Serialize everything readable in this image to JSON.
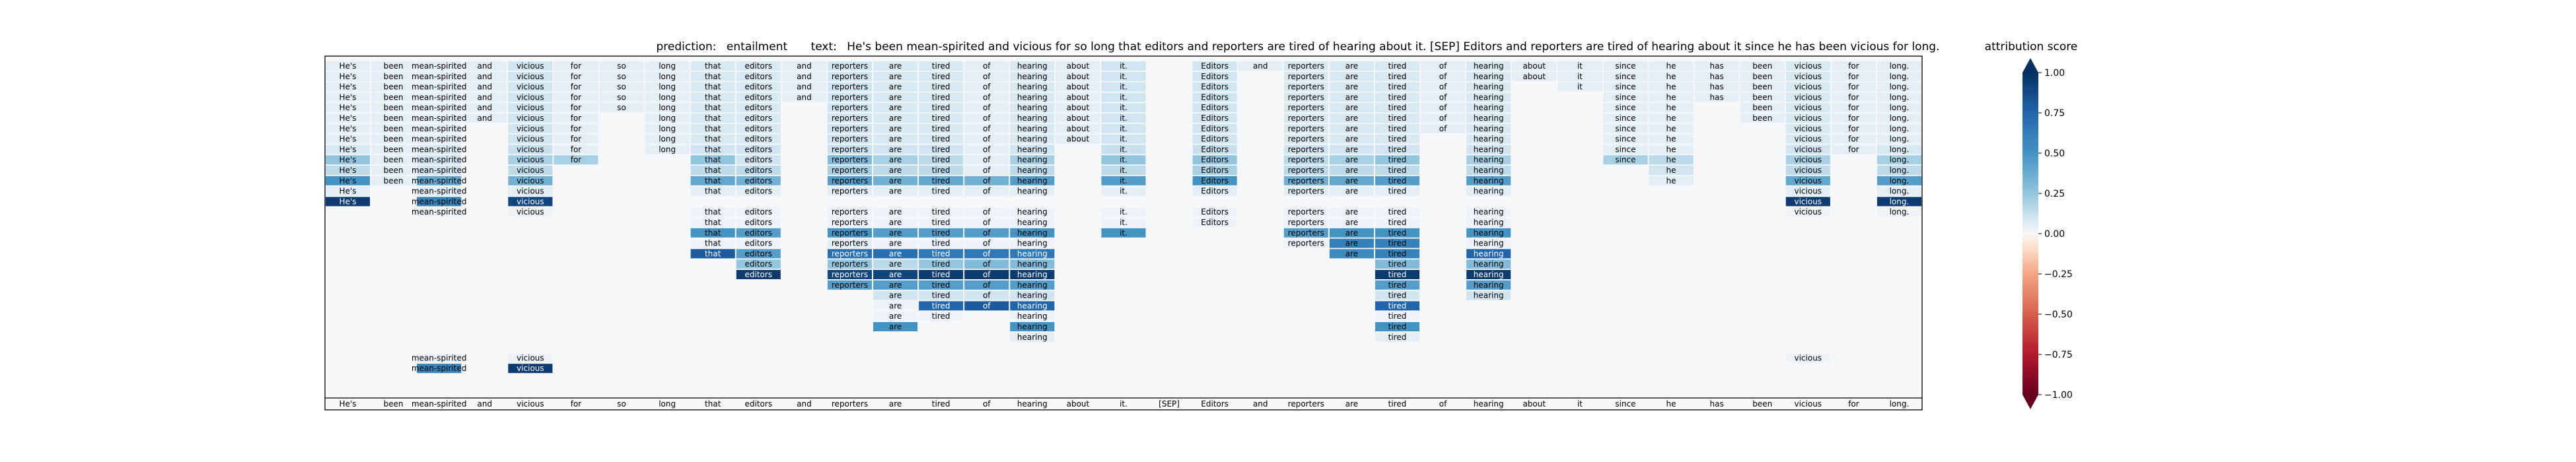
{
  "chart_data": {
    "type": "heatmap",
    "title": {
      "prediction_label": "prediction:",
      "prediction": "entailment",
      "text_label": "text:",
      "text": "He's been mean-spirited and vicious for so long that editors and reporters are tired of hearing about it. [SEP] Editors and reporters are tired of hearing about it since he has been vicious for long."
    },
    "tokens": [
      "He's",
      "been",
      "mean-spirited",
      "and",
      "vicious",
      "for",
      "so",
      "long",
      "that",
      "editors",
      "and",
      "reporters",
      "are",
      "tired",
      "of",
      "hearing",
      "about",
      "it.",
      "[SEP]",
      "Editors",
      "and",
      "reporters",
      "are",
      "tired",
      "of",
      "hearing",
      "about",
      "it",
      "since",
      "he",
      "has",
      "been",
      "vicious",
      "for",
      "long."
    ],
    "rows": [
      {
        "tokens": [
          0,
          1,
          2,
          3,
          4,
          5,
          6,
          7,
          8,
          9,
          10,
          11,
          12,
          13,
          14,
          15,
          16,
          17,
          19,
          20,
          21,
          22,
          23,
          24,
          25,
          26,
          27,
          28,
          29,
          30,
          31,
          32,
          33,
          34
        ],
        "scores": {
          "0": 0.05,
          "1": 0.05,
          "2": 0.05,
          "3": 0.05,
          "4": 0.1,
          "5": 0.05,
          "6": 0.05,
          "7": 0.05,
          "8": 0.08,
          "9": 0.08,
          "10": 0.05,
          "11": 0.1,
          "12": 0.08,
          "13": 0.08,
          "14": 0.05,
          "15": 0.08,
          "16": 0.05,
          "17": 0.1,
          "19": 0.1,
          "20": 0.05,
          "21": 0.08,
          "22": 0.08,
          "23": 0.08,
          "24": 0.05,
          "25": 0.08,
          "26": 0.05,
          "27": 0.05,
          "28": 0.05,
          "29": 0.05,
          "30": 0.05,
          "31": 0.05,
          "32": 0.08,
          "33": 0.05,
          "34": 0.05
        }
      },
      {
        "tokens": [
          0,
          1,
          2,
          3,
          4,
          5,
          6,
          7,
          8,
          9,
          10,
          11,
          12,
          13,
          14,
          15,
          16,
          17,
          19,
          21,
          22,
          23,
          24,
          25,
          26,
          27,
          28,
          29,
          30,
          31,
          32,
          33,
          34
        ],
        "scores": {
          "0": 0.05,
          "1": 0.05,
          "2": 0.05,
          "3": 0.05,
          "4": 0.1,
          "5": 0.05,
          "6": 0.05,
          "7": 0.05,
          "8": 0.08,
          "9": 0.08,
          "10": 0.05,
          "11": 0.1,
          "12": 0.08,
          "13": 0.08,
          "14": 0.05,
          "15": 0.08,
          "16": 0.05,
          "17": 0.1,
          "19": 0.1,
          "21": 0.08,
          "22": 0.08,
          "23": 0.08,
          "24": 0.05,
          "25": 0.08,
          "26": 0.05,
          "27": 0.05,
          "28": 0.05,
          "29": 0.05,
          "30": 0.05,
          "31": 0.05,
          "32": 0.08,
          "33": 0.05,
          "34": 0.05
        }
      },
      {
        "tokens": [
          0,
          1,
          2,
          3,
          4,
          5,
          6,
          7,
          8,
          9,
          10,
          11,
          12,
          13,
          14,
          15,
          16,
          17,
          19,
          21,
          22,
          23,
          24,
          25,
          27,
          28,
          29,
          30,
          31,
          32,
          33,
          34
        ],
        "scores": {
          "0": 0.05,
          "1": 0.05,
          "2": 0.05,
          "3": 0.05,
          "4": 0.1,
          "5": 0.05,
          "6": 0.05,
          "7": 0.05,
          "8": 0.08,
          "9": 0.08,
          "10": 0.05,
          "11": 0.1,
          "12": 0.08,
          "13": 0.08,
          "14": 0.05,
          "15": 0.08,
          "16": 0.05,
          "17": 0.1,
          "19": 0.1,
          "21": 0.08,
          "22": 0.08,
          "23": 0.08,
          "24": 0.05,
          "25": 0.08,
          "27": 0.05,
          "28": 0.05,
          "29": 0.05,
          "30": 0.05,
          "31": 0.05,
          "32": 0.08,
          "33": 0.05,
          "34": 0.05
        }
      },
      {
        "tokens": [
          0,
          1,
          2,
          3,
          4,
          5,
          6,
          7,
          8,
          9,
          10,
          11,
          12,
          13,
          14,
          15,
          16,
          17,
          19,
          21,
          22,
          23,
          24,
          25,
          28,
          29,
          30,
          31,
          32,
          33,
          34
        ],
        "scores": {
          "0": 0.05,
          "1": 0.05,
          "2": 0.05,
          "3": 0.05,
          "4": 0.1,
          "5": 0.05,
          "6": 0.05,
          "7": 0.05,
          "8": 0.08,
          "9": 0.08,
          "10": 0.05,
          "11": 0.1,
          "12": 0.08,
          "13": 0.08,
          "14": 0.05,
          "15": 0.08,
          "16": 0.05,
          "17": 0.1,
          "19": 0.1,
          "21": 0.08,
          "22": 0.08,
          "23": 0.08,
          "24": 0.05,
          "25": 0.08,
          "28": 0.05,
          "29": 0.05,
          "30": 0.05,
          "31": 0.05,
          "32": 0.08,
          "33": 0.05,
          "34": 0.05
        }
      },
      {
        "tokens": [
          0,
          1,
          2,
          3,
          4,
          5,
          6,
          7,
          8,
          9,
          11,
          12,
          13,
          14,
          15,
          16,
          17,
          19,
          21,
          22,
          23,
          24,
          25,
          28,
          29,
          31,
          32,
          33,
          34
        ],
        "scores": {
          "0": 0.05,
          "1": 0.05,
          "2": 0.05,
          "3": 0.05,
          "4": 0.1,
          "5": 0.05,
          "6": 0.05,
          "7": 0.05,
          "8": 0.08,
          "9": 0.08,
          "11": 0.1,
          "12": 0.08,
          "13": 0.08,
          "14": 0.05,
          "15": 0.08,
          "16": 0.05,
          "17": 0.1,
          "19": 0.1,
          "21": 0.08,
          "22": 0.08,
          "23": 0.08,
          "24": 0.05,
          "25": 0.08,
          "28": 0.05,
          "29": 0.05,
          "31": 0.05,
          "32": 0.08,
          "33": 0.05,
          "34": 0.05
        }
      },
      {
        "tokens": [
          0,
          1,
          2,
          3,
          4,
          5,
          7,
          8,
          9,
          11,
          12,
          13,
          14,
          15,
          16,
          17,
          19,
          21,
          22,
          23,
          24,
          25,
          28,
          29,
          31,
          32,
          33,
          34
        ],
        "scores": {
          "0": 0.05,
          "1": 0.05,
          "2": 0.05,
          "3": 0.05,
          "4": 0.1,
          "5": 0.05,
          "7": 0.05,
          "8": 0.08,
          "9": 0.08,
          "11": 0.1,
          "12": 0.08,
          "13": 0.08,
          "14": 0.05,
          "15": 0.08,
          "16": 0.05,
          "17": 0.1,
          "19": 0.1,
          "21": 0.08,
          "22": 0.08,
          "23": 0.08,
          "24": 0.05,
          "25": 0.08,
          "28": 0.05,
          "29": 0.05,
          "31": 0.05,
          "32": 0.08,
          "33": 0.05,
          "34": 0.05
        }
      },
      {
        "tokens": [
          0,
          1,
          2,
          4,
          5,
          7,
          8,
          9,
          11,
          12,
          13,
          14,
          15,
          16,
          17,
          19,
          21,
          22,
          23,
          24,
          25,
          28,
          29,
          32,
          33,
          34
        ],
        "scores": {
          "0": 0.05,
          "1": 0.05,
          "2": 0.05,
          "4": 0.1,
          "5": 0.05,
          "7": 0.05,
          "8": 0.08,
          "9": 0.08,
          "11": 0.1,
          "12": 0.08,
          "13": 0.08,
          "14": 0.05,
          "15": 0.08,
          "16": 0.05,
          "17": 0.1,
          "19": 0.1,
          "21": 0.08,
          "22": 0.08,
          "23": 0.08,
          "24": 0.05,
          "25": 0.08,
          "28": 0.05,
          "29": 0.05,
          "32": 0.08,
          "33": 0.05,
          "34": 0.05
        }
      },
      {
        "tokens": [
          0,
          1,
          2,
          4,
          5,
          7,
          8,
          9,
          11,
          12,
          13,
          14,
          15,
          16,
          17,
          19,
          21,
          22,
          23,
          25,
          28,
          29,
          32,
          33,
          34
        ],
        "scores": {
          "0": 0.05,
          "1": 0.05,
          "2": 0.05,
          "4": 0.1,
          "5": 0.05,
          "7": 0.05,
          "8": 0.08,
          "9": 0.08,
          "11": 0.1,
          "12": 0.08,
          "13": 0.08,
          "14": 0.05,
          "15": 0.08,
          "16": 0.05,
          "17": 0.1,
          "19": 0.1,
          "21": 0.08,
          "22": 0.08,
          "23": 0.08,
          "25": 0.08,
          "28": 0.05,
          "29": 0.05,
          "32": 0.08,
          "33": 0.05,
          "34": 0.05
        }
      },
      {
        "tokens": [
          0,
          1,
          2,
          4,
          5,
          7,
          8,
          9,
          11,
          12,
          13,
          14,
          15,
          17,
          19,
          21,
          22,
          23,
          25,
          28,
          29,
          32,
          33,
          34
        ],
        "scores": {
          "0": 0.08,
          "1": 0.05,
          "2": 0.08,
          "4": 0.12,
          "5": 0.05,
          "7": 0.05,
          "8": 0.1,
          "9": 0.1,
          "11": 0.12,
          "12": 0.1,
          "13": 0.1,
          "14": 0.05,
          "15": 0.1,
          "17": 0.12,
          "19": 0.12,
          "21": 0.1,
          "22": 0.1,
          "23": 0.1,
          "25": 0.1,
          "28": 0.05,
          "29": 0.05,
          "32": 0.1,
          "33": 0.05,
          "34": 0.08
        }
      },
      {
        "tokens": [
          0,
          1,
          2,
          4,
          5,
          8,
          9,
          11,
          12,
          13,
          14,
          15,
          17,
          19,
          21,
          22,
          23,
          25,
          28,
          29,
          32,
          34
        ],
        "scores": {
          "0": 0.25,
          "1": 0.05,
          "2": 0.1,
          "4": 0.2,
          "5": 0.2,
          "8": 0.25,
          "9": 0.1,
          "11": 0.3,
          "12": 0.2,
          "13": 0.15,
          "14": 0.05,
          "15": 0.2,
          "17": 0.25,
          "19": 0.25,
          "21": 0.15,
          "22": 0.2,
          "23": 0.25,
          "25": 0.2,
          "28": 0.2,
          "29": 0.15,
          "32": 0.2,
          "34": 0.2
        }
      },
      {
        "tokens": [
          0,
          1,
          2,
          4,
          8,
          9,
          11,
          12,
          13,
          14,
          15,
          17,
          19,
          21,
          22,
          23,
          25,
          29,
          32,
          34
        ],
        "scores": {
          "0": 0.15,
          "1": 0.05,
          "2": 0.1,
          "4": 0.15,
          "8": 0.15,
          "9": 0.15,
          "11": 0.2,
          "12": 0.15,
          "13": 0.15,
          "14": 0.05,
          "15": 0.15,
          "17": 0.15,
          "19": 0.2,
          "21": 0.15,
          "22": 0.15,
          "23": 0.15,
          "25": 0.15,
          "29": 0.1,
          "32": 0.15,
          "34": 0.15
        }
      },
      {
        "tokens": [
          0,
          1,
          2,
          4,
          8,
          9,
          11,
          12,
          13,
          14,
          15,
          17,
          19,
          21,
          22,
          23,
          25,
          29,
          32,
          34
        ],
        "scores": {
          "0": 0.5,
          "1": 0.05,
          "2": 0.4,
          "4": 0.35,
          "8": 0.4,
          "9": 0.35,
          "11": 0.45,
          "12": 0.35,
          "13": 0.4,
          "14": 0.35,
          "15": 0.45,
          "17": 0.45,
          "19": 0.5,
          "21": 0.35,
          "22": 0.4,
          "23": 0.45,
          "25": 0.45,
          "29": 0.05,
          "32": 0.4,
          "34": 0.45
        }
      },
      {
        "tokens": [
          0,
          2,
          4,
          8,
          9,
          11,
          12,
          13,
          14,
          15,
          17,
          19,
          21,
          22,
          23,
          25,
          32,
          34
        ],
        "scores": {
          "0": 0.05,
          "2": 0.05,
          "4": 0.05,
          "8": 0.05,
          "9": 0.05,
          "11": 0.05,
          "12": 0.05,
          "13": 0.05,
          "14": 0.05,
          "15": 0.05,
          "17": 0.05,
          "19": 0.05,
          "21": 0.05,
          "22": 0.05,
          "23": 0.05,
          "25": 0.05,
          "32": 0.05,
          "34": 0.05
        }
      },
      {
        "tokens": [
          0,
          2,
          4,
          32,
          34
        ],
        "scores": {
          "0": 0.95,
          "2": 0.6,
          "4": 0.9,
          "32": 0.95,
          "34": 0.95
        }
      },
      {
        "tokens": [
          2,
          4,
          8,
          9,
          11,
          12,
          13,
          14,
          15,
          17,
          19,
          21,
          22,
          23,
          25,
          32,
          34
        ],
        "scores": {
          "2": 0.02,
          "4": 0.02,
          "8": 0.02,
          "9": 0.02,
          "11": 0.02,
          "12": 0.02,
          "13": 0.02,
          "14": 0.02,
          "15": 0.02,
          "17": 0.02,
          "19": 0.02,
          "21": 0.02,
          "22": 0.02,
          "23": 0.02,
          "25": 0.02,
          "32": 0.02,
          "34": 0.02
        }
      },
      {
        "tokens": [
          8,
          9,
          11,
          12,
          13,
          14,
          15,
          17,
          19,
          21,
          22,
          23,
          25
        ],
        "scores": {
          "8": 0.02,
          "9": 0.02,
          "11": 0.02,
          "12": 0.02,
          "13": 0.02,
          "14": 0.02,
          "15": 0.02,
          "17": 0.02,
          "19": 0.02,
          "21": 0.02,
          "22": 0.02,
          "23": 0.02,
          "25": 0.02
        }
      },
      {
        "tokens": [
          8,
          9,
          11,
          12,
          13,
          14,
          15,
          17,
          21,
          22,
          23,
          25
        ],
        "scores": {
          "8": 0.5,
          "9": 0.45,
          "11": 0.5,
          "12": 0.45,
          "13": 0.45,
          "14": 0.45,
          "15": 0.5,
          "17": 0.5,
          "21": 0.45,
          "22": 0.5,
          "23": 0.5,
          "25": 0.5
        }
      },
      {
        "tokens": [
          8,
          9,
          11,
          12,
          13,
          14,
          15,
          21,
          22,
          23,
          25
        ],
        "scores": {
          "8": 0.02,
          "9": 0.02,
          "11": 0.05,
          "12": 0.02,
          "13": 0.02,
          "14": 0.02,
          "15": 0.02,
          "21": 0.02,
          "22": 0.6,
          "23": 0.6,
          "25": 0.02
        }
      },
      {
        "tokens": [
          8,
          9,
          11,
          12,
          13,
          14,
          15,
          22,
          23,
          25
        ],
        "scores": {
          "8": 0.8,
          "9": 0.45,
          "11": 0.7,
          "12": 0.7,
          "13": 0.65,
          "14": 0.65,
          "15": 0.65,
          "22": 0.55,
          "23": 0.6,
          "25": 0.75
        }
      },
      {
        "tokens": [
          9,
          11,
          12,
          13,
          14,
          15,
          23,
          25
        ],
        "scores": {
          "9": 0.25,
          "11": 0.25,
          "12": 0.15,
          "13": 0.25,
          "14": 0.3,
          "15": 0.3,
          "23": 0.3,
          "25": 0.3
        }
      },
      {
        "tokens": [
          9,
          11,
          12,
          13,
          14,
          15,
          23,
          25
        ],
        "scores": {
          "9": 0.95,
          "11": 0.9,
          "12": 0.9,
          "13": 0.95,
          "14": 0.95,
          "15": 0.95,
          "23": 0.95,
          "25": 0.95
        }
      },
      {
        "tokens": [
          11,
          12,
          13,
          14,
          15,
          23,
          25
        ],
        "scores": {
          "11": 0.45,
          "12": 0.45,
          "13": 0.45,
          "14": 0.45,
          "15": 0.45,
          "23": 0.45,
          "25": 0.45
        }
      },
      {
        "tokens": [
          12,
          13,
          14,
          15,
          23,
          25
        ],
        "scores": {
          "12": 0.1,
          "13": 0.1,
          "14": 0.1,
          "15": 0.1,
          "23": 0.1,
          "25": 0.1
        }
      },
      {
        "tokens": [
          12,
          13,
          14,
          15,
          23
        ],
        "scores": {
          "12": 0.02,
          "13": 0.75,
          "14": 0.8,
          "15": 0.75,
          "23": 0.75
        }
      },
      {
        "tokens": [
          12,
          13,
          15,
          23
        ],
        "scores": {
          "12": 0.02,
          "13": 0.02,
          "15": 0.02,
          "23": 0.02
        }
      },
      {
        "tokens": [
          12,
          15,
          23
        ],
        "scores": {
          "12": 0.5,
          "15": 0.5,
          "23": 0.5
        }
      },
      {
        "tokens": [
          15,
          23
        ],
        "scores": {
          "15": 0.05,
          "23": 0.05
        }
      },
      {
        "tokens": [],
        "scores": {}
      },
      {
        "tokens": [
          2,
          4,
          32
        ],
        "scores": {
          "2": 0.02,
          "4": 0.02,
          "32": 0.02
        }
      },
      {
        "tokens": [
          2,
          4
        ],
        "scores": {
          "2": 0.6,
          "4": 0.95
        }
      }
    ],
    "colorbar": {
      "label": "attribution score",
      "ticks": [
        "1.00",
        "0.75",
        "0.50",
        "0.25",
        "0.00",
        "−0.25",
        "−0.50",
        "−0.75",
        "−1.00"
      ],
      "range": [
        -1,
        1
      ],
      "colormap": "RdBu"
    },
    "background_color": "#f5f7f8",
    "grid": false
  }
}
